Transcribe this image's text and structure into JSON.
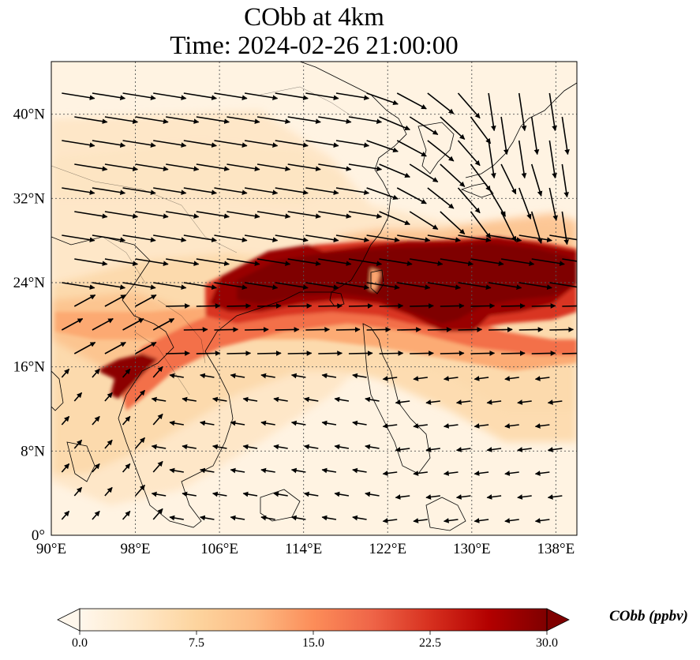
{
  "title": {
    "line1": "CObb at 4km",
    "line2": "Time: 2024-02-26 21:00:00"
  },
  "map": {
    "lon_range": [
      90,
      140
    ],
    "lat_range": [
      0,
      45
    ],
    "lon_ticks": [
      {
        "value": 90,
        "label": "90°E"
      },
      {
        "value": 98,
        "label": "98°E"
      },
      {
        "value": 106,
        "label": "106°E"
      },
      {
        "value": 114,
        "label": "114°E"
      },
      {
        "value": 122,
        "label": "122°E"
      },
      {
        "value": 130,
        "label": "130°E"
      },
      {
        "value": 138,
        "label": "138°E"
      }
    ],
    "lat_ticks": [
      {
        "value": 0,
        "label": "0°"
      },
      {
        "value": 8,
        "label": "8°N"
      },
      {
        "value": 16,
        "label": "16°N"
      },
      {
        "value": 24,
        "label": "24°N"
      },
      {
        "value": 32,
        "label": "32°N"
      },
      {
        "value": 40,
        "label": "40°N"
      }
    ],
    "gridlines": true,
    "plume_core_colour": "#7f0000",
    "wind_vector_colour": "#000000"
  },
  "colorbar": {
    "title": "CObb (ppbv)",
    "min": 0,
    "max": 30,
    "ticks": [
      "0.0",
      "7.5",
      "15.0",
      "22.5",
      "30.0"
    ],
    "colormap": [
      "#fff7ec",
      "#fee8c8",
      "#fdd49e",
      "#fdbb84",
      "#fc8d59",
      "#ef6548",
      "#d7301f",
      "#b30000",
      "#7f0000"
    ],
    "extend": "both"
  }
}
